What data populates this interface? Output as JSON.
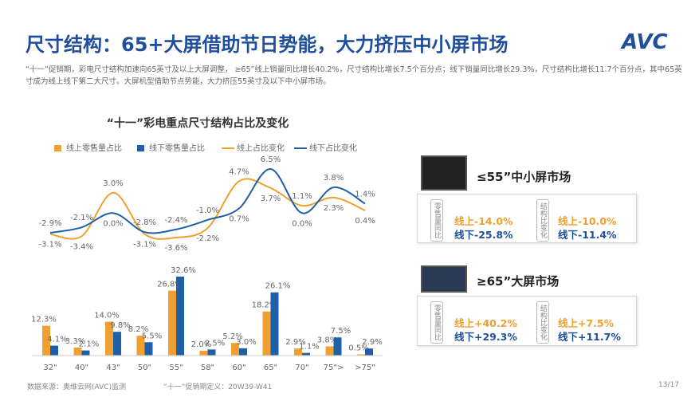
{
  "header": {
    "title": "尺寸结构：65+大屏借助节日势能，大力挤压中小屏市场",
    "logo": "AVC",
    "description": "“十一”促销期，彩电尺寸结构加速向65英寸及以上大屏调整， ≥65”线上销量同比增长40.2%，尺寸结构比增长7.5个百分点；线下销量同比增长29.3%，尺寸结构比增长11.7个百分点，其中65英寸成为线上线下第二大尺寸。大屏机型借助节点势能，大力挤压55英寸及以下中小屏市场。"
  },
  "chart_data": {
    "type": "bar",
    "title": "“十一”彩电重点尺寸结构占比及变化",
    "categories": [
      "32\"",
      "40\"",
      "43\"",
      "50\"",
      "55\"",
      "58\"",
      "60\"",
      "65\"",
      "70\"",
      "75\">",
      ">75\""
    ],
    "series": [
      {
        "name": "线上零售量占比",
        "type": "bar",
        "color": "#f0a030",
        "values": [
          12.3,
          3.3,
          14.0,
          8.2,
          26.8,
          2.0,
          5.2,
          18.2,
          2.9,
          3.8,
          0.5
        ],
        "value_labels": [
          "12.3%",
          "3.3%",
          "14.0%",
          "8.2%",
          "26.8%",
          "2.0%",
          "5.2%",
          "18.2%",
          "2.9%",
          "3.8%",
          "0.5%"
        ]
      },
      {
        "name": "线下零售量占比",
        "type": "bar",
        "color": "#1f5fa8",
        "values": [
          4.1,
          2.1,
          9.8,
          5.5,
          32.6,
          2.5,
          3.0,
          26.1,
          1.1,
          7.5,
          2.9
        ],
        "value_labels": [
          "4.1%",
          "2.1%",
          "9.8%",
          "5.5%",
          "32.6%",
          "2.5%",
          "3.0%",
          "26.1%",
          "1.1%",
          "7.5%",
          "2.9%"
        ]
      },
      {
        "name": "线上占比变化",
        "type": "line",
        "color": "#f0a030",
        "values": [
          -3.1,
          -3.4,
          3.0,
          -3.1,
          -3.6,
          -2.2,
          4.7,
          3.7,
          1.1,
          2.3,
          0.4
        ],
        "value_labels": [
          "-3.1%",
          "-3.4%",
          "3.0%",
          "-3.1%",
          "-3.6%",
          "-2.2%",
          "4.7%",
          "3.7%",
          "1.1%",
          "2.3%",
          "0.4%"
        ]
      },
      {
        "name": "线下占比变化",
        "type": "line",
        "color": "#1f5fa8",
        "values": [
          -2.9,
          -2.1,
          0.0,
          -2.8,
          -2.4,
          -1.0,
          0.7,
          6.5,
          0.0,
          3.8,
          1.4
        ],
        "value_labels": [
          "-2.9%",
          "-2.1%",
          "0.0%",
          "-2.8%",
          "-2.4%",
          "-1.0%",
          "0.7%",
          "6.5%",
          "0.0%",
          "3.8%",
          "1.4%"
        ]
      }
    ]
  },
  "panels": [
    {
      "title": "≤55”中小屏市场",
      "metrics": [
        {
          "label": "零售量同比",
          "online": "线上-14.0%",
          "offline": "线下-25.8%"
        },
        {
          "label": "结构比变化",
          "online": "线上-10.0%",
          "offline": "线下-11.4%"
        }
      ]
    },
    {
      "title": "≥65”大屏市场",
      "metrics": [
        {
          "label": "零售量同比",
          "online": "线上+40.2%",
          "offline": "线下+29.3%"
        },
        {
          "label": "结构比变化",
          "online": "线上+7.5%",
          "offline": "线下+11.7%"
        }
      ]
    }
  ],
  "footer": {
    "source": "数据来源：奥维云网(AVC)监测",
    "definition": "“十一”促销期定义：20W39-W41",
    "page": "13/17"
  }
}
